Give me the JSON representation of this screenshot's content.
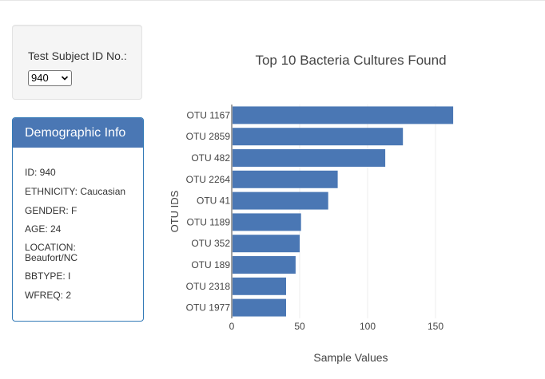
{
  "selector": {
    "label": "Test Subject ID No.:",
    "selected": "940"
  },
  "demographics": {
    "title": "Demographic Info",
    "lines": [
      "ID: 940",
      "ETHNICITY: Caucasian",
      "GENDER: F",
      "AGE: 24",
      "LOCATION: Beaufort/NC",
      "BBTYPE: I",
      "WFREQ: 2"
    ]
  },
  "colors": {
    "bar": "#4a77b4",
    "panel_heading": "#4a77b4",
    "panel_border": "#337ab7"
  },
  "chart_data": {
    "type": "bar",
    "orientation": "horizontal",
    "title": "Top 10 Bacteria Cultures Found",
    "xlabel": "Sample Values",
    "ylabel": "OTU IDS",
    "xlim": [
      0,
      170
    ],
    "xticks": [
      0,
      50,
      100,
      150
    ],
    "grid": true,
    "categories": [
      "OTU 1167",
      "OTU 2859",
      "OTU 482",
      "OTU 2264",
      "OTU 41",
      "OTU 1189",
      "OTU 352",
      "OTU 189",
      "OTU 2318",
      "OTU 1977"
    ],
    "values": [
      163,
      126,
      113,
      78,
      71,
      51,
      50,
      47,
      40,
      40
    ]
  }
}
